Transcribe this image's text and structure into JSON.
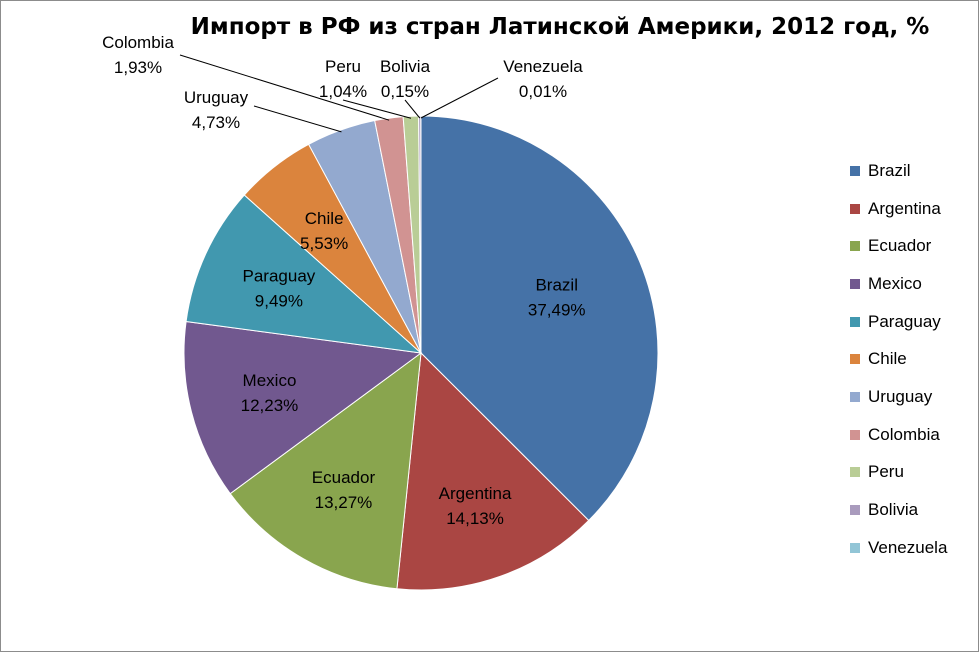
{
  "chart_data": {
    "type": "pie",
    "title": "Импорт в РФ из стран Латинской Америки, 2012 год, %",
    "legend_position": "right",
    "slices": [
      {
        "name": "Brazil",
        "value": 37.49,
        "label": "37,49%",
        "color": "#4572A7"
      },
      {
        "name": "Argentina",
        "value": 14.13,
        "label": "14,13%",
        "color": "#AA4643"
      },
      {
        "name": "Ecuador",
        "value": 13.27,
        "label": "13,27%",
        "color": "#89A54E"
      },
      {
        "name": "Mexico",
        "value": 12.23,
        "label": "12,23%",
        "color": "#71588F"
      },
      {
        "name": "Paraguay",
        "value": 9.49,
        "label": "9,49%",
        "color": "#4198AF"
      },
      {
        "name": "Chile",
        "value": 5.53,
        "label": "5,53%",
        "color": "#DB843D"
      },
      {
        "name": "Uruguay",
        "value": 4.73,
        "label": "4,73%",
        "color": "#93A9CF"
      },
      {
        "name": "Colombia",
        "value": 1.93,
        "label": "1,93%",
        "color": "#D19392"
      },
      {
        "name": "Peru",
        "value": 1.04,
        "label": "1,04%",
        "color": "#B9CD96"
      },
      {
        "name": "Bolivia",
        "value": 0.15,
        "label": "0,15%",
        "color": "#A99BBD"
      },
      {
        "name": "Venezuela",
        "value": 0.01,
        "label": "0,01%",
        "color": "#92C5D6"
      }
    ]
  }
}
